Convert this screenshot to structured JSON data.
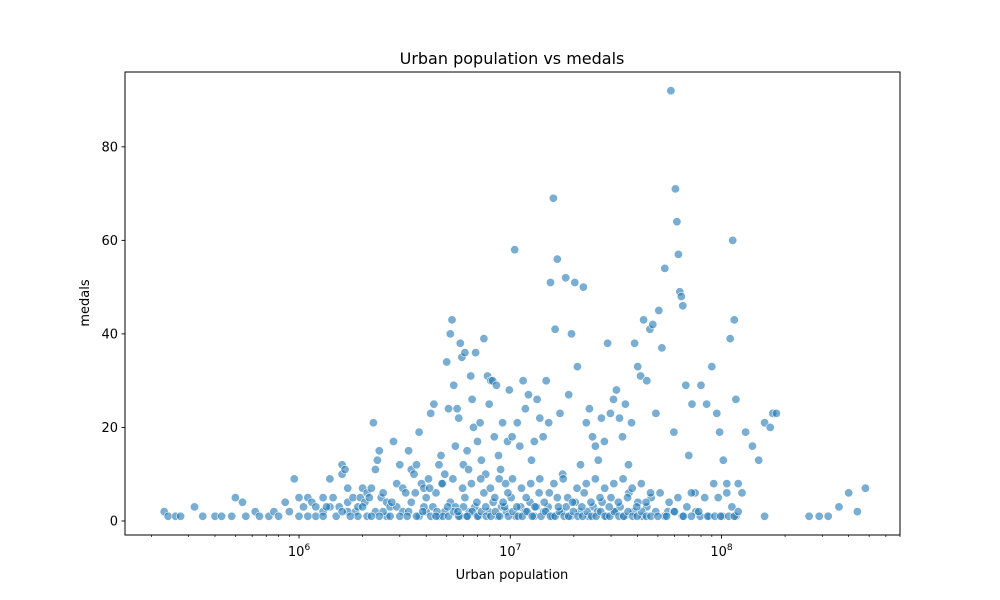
{
  "chart_data": {
    "type": "scatter",
    "title": "Urban population vs medals",
    "xlabel": "Urban population",
    "ylabel": "medals",
    "xscale": "log",
    "xlim": [
      150000,
      700000000
    ],
    "ylim": [
      -3,
      96
    ],
    "x_major_ticks": [
      {
        "value": 1000000,
        "base": "10",
        "exp": "6"
      },
      {
        "value": 10000000,
        "base": "10",
        "exp": "7"
      },
      {
        "value": 100000000,
        "base": "10",
        "exp": "8"
      }
    ],
    "y_ticks": [
      {
        "value": 0,
        "label": "0"
      },
      {
        "value": 20,
        "label": "20"
      },
      {
        "value": 40,
        "label": "40"
      },
      {
        "value": 60,
        "label": "60"
      },
      {
        "value": 80,
        "label": "80"
      }
    ],
    "grid": false,
    "point_color": "#1f77b4",
    "points": [
      [
        230000,
        2
      ],
      [
        240000,
        1
      ],
      [
        260000,
        1
      ],
      [
        275000,
        1
      ],
      [
        320000,
        3
      ],
      [
        350000,
        1
      ],
      [
        400000,
        1
      ],
      [
        430000,
        1
      ],
      [
        480000,
        1
      ],
      [
        500000,
        5
      ],
      [
        540000,
        4
      ],
      [
        560000,
        1
      ],
      [
        620000,
        2
      ],
      [
        650000,
        1
      ],
      [
        720000,
        1
      ],
      [
        760000,
        2
      ],
      [
        800000,
        1
      ],
      [
        860000,
        4
      ],
      [
        900000,
        2
      ],
      [
        950000,
        9
      ],
      [
        1000000,
        1
      ],
      [
        1000000,
        5
      ],
      [
        1050000,
        3
      ],
      [
        1100000,
        5
      ],
      [
        1150000,
        4
      ],
      [
        1200000,
        3
      ],
      [
        1300000,
        5
      ],
      [
        1300000,
        2
      ],
      [
        1400000,
        3
      ],
      [
        1400000,
        9
      ],
      [
        1450000,
        5
      ],
      [
        1550000,
        3
      ],
      [
        1600000,
        12
      ],
      [
        1600000,
        10
      ],
      [
        1650000,
        11
      ],
      [
        1700000,
        4
      ],
      [
        1700000,
        7
      ],
      [
        1800000,
        5
      ],
      [
        1850000,
        2
      ],
      [
        1900000,
        3
      ],
      [
        1950000,
        5
      ],
      [
        2000000,
        7
      ],
      [
        2050000,
        4
      ],
      [
        2100000,
        6
      ],
      [
        2200000,
        7
      ],
      [
        2250000,
        21
      ],
      [
        2300000,
        11
      ],
      [
        2350000,
        13
      ],
      [
        2400000,
        15
      ],
      [
        2450000,
        5
      ],
      [
        2500000,
        6
      ],
      [
        2600000,
        4
      ],
      [
        2700000,
        3
      ],
      [
        2800000,
        17
      ],
      [
        2900000,
        8
      ],
      [
        3000000,
        12
      ],
      [
        3100000,
        7
      ],
      [
        3200000,
        6
      ],
      [
        3300000,
        15
      ],
      [
        3400000,
        11
      ],
      [
        3500000,
        10
      ],
      [
        3600000,
        12
      ],
      [
        3700000,
        19
      ],
      [
        3800000,
        8
      ],
      [
        3900000,
        7
      ],
      [
        4000000,
        5
      ],
      [
        4100000,
        9
      ],
      [
        4200000,
        23
      ],
      [
        4350000,
        25
      ],
      [
        4450000,
        6
      ],
      [
        4600000,
        12
      ],
      [
        4700000,
        14
      ],
      [
        4800000,
        8
      ],
      [
        4900000,
        10
      ],
      [
        5000000,
        34
      ],
      [
        5100000,
        24
      ],
      [
        5200000,
        40
      ],
      [
        5300000,
        43
      ],
      [
        5400000,
        29
      ],
      [
        5500000,
        16
      ],
      [
        5600000,
        24
      ],
      [
        5700000,
        22
      ],
      [
        5800000,
        38
      ],
      [
        5900000,
        35
      ],
      [
        6000000,
        12
      ],
      [
        6100000,
        36
      ],
      [
        6250000,
        15
      ],
      [
        6350000,
        11
      ],
      [
        6500000,
        31
      ],
      [
        6600000,
        26
      ],
      [
        6700000,
        20
      ],
      [
        6850000,
        36
      ],
      [
        7000000,
        17
      ],
      [
        7200000,
        21
      ],
      [
        7300000,
        13
      ],
      [
        7500000,
        39
      ],
      [
        7650000,
        10
      ],
      [
        7800000,
        31
      ],
      [
        7950000,
        25
      ],
      [
        8100000,
        30
      ],
      [
        8250000,
        30
      ],
      [
        8400000,
        18
      ],
      [
        8600000,
        29
      ],
      [
        8800000,
        14
      ],
      [
        9000000,
        11
      ],
      [
        9200000,
        21
      ],
      [
        9500000,
        8
      ],
      [
        9700000,
        17
      ],
      [
        9900000,
        28
      ],
      [
        10200000,
        18
      ],
      [
        10500000,
        58
      ],
      [
        10800000,
        21
      ],
      [
        11100000,
        16
      ],
      [
        11500000,
        30
      ],
      [
        11800000,
        24
      ],
      [
        12200000,
        27
      ],
      [
        12600000,
        13
      ],
      [
        13000000,
        17
      ],
      [
        13400000,
        26
      ],
      [
        13800000,
        22
      ],
      [
        14300000,
        18
      ],
      [
        14800000,
        30
      ],
      [
        15200000,
        21
      ],
      [
        15500000,
        51
      ],
      [
        16000000,
        69
      ],
      [
        16300000,
        41
      ],
      [
        16700000,
        56
      ],
      [
        17200000,
        23
      ],
      [
        17700000,
        10
      ],
      [
        18300000,
        52
      ],
      [
        18900000,
        27
      ],
      [
        19500000,
        40
      ],
      [
        20200000,
        51
      ],
      [
        20800000,
        33
      ],
      [
        21500000,
        12
      ],
      [
        22200000,
        50
      ],
      [
        22900000,
        21
      ],
      [
        23700000,
        24
      ],
      [
        24500000,
        18
      ],
      [
        25300000,
        16
      ],
      [
        26100000,
        13
      ],
      [
        27000000,
        22
      ],
      [
        27900000,
        17
      ],
      [
        28900000,
        38
      ],
      [
        29800000,
        23
      ],
      [
        30800000,
        26
      ],
      [
        31800000,
        28
      ],
      [
        32900000,
        22
      ],
      [
        34000000,
        18
      ],
      [
        35100000,
        25
      ],
      [
        36300000,
        12
      ],
      [
        37500000,
        21
      ],
      [
        38800000,
        38
      ],
      [
        40100000,
        33
      ],
      [
        41400000,
        31
      ],
      [
        42800000,
        43
      ],
      [
        44300000,
        30
      ],
      [
        45800000,
        41
      ],
      [
        47300000,
        42
      ],
      [
        48900000,
        23
      ],
      [
        50500000,
        45
      ],
      [
        52200000,
        37
      ],
      [
        53900000,
        54
      ],
      [
        55700000,
        2
      ],
      [
        57600000,
        92
      ],
      [
        59500000,
        19
      ],
      [
        60500000,
        71
      ],
      [
        61500000,
        64
      ],
      [
        62500000,
        57
      ],
      [
        63500000,
        49
      ],
      [
        64500000,
        48
      ],
      [
        65600000,
        46
      ],
      [
        67800000,
        29
      ],
      [
        70000000,
        14
      ],
      [
        72500000,
        25
      ],
      [
        75000000,
        6
      ],
      [
        80000000,
        29
      ],
      [
        85000000,
        25
      ],
      [
        90000000,
        33
      ],
      [
        95000000,
        23
      ],
      [
        98000000,
        19
      ],
      [
        102000000,
        13
      ],
      [
        106000000,
        8
      ],
      [
        110000000,
        39
      ],
      [
        113000000,
        60
      ],
      [
        115000000,
        43
      ],
      [
        117000000,
        26
      ],
      [
        120000000,
        8
      ],
      [
        125000000,
        6
      ],
      [
        130000000,
        19
      ],
      [
        140000000,
        16
      ],
      [
        150000000,
        13
      ],
      [
        160000000,
        21
      ],
      [
        170000000,
        20
      ],
      [
        175000000,
        23
      ],
      [
        182000000,
        23
      ],
      [
        260000000,
        1
      ],
      [
        290000000,
        1
      ],
      [
        320000000,
        1
      ],
      [
        360000000,
        3
      ],
      [
        400000000,
        6
      ],
      [
        440000000,
        2
      ],
      [
        480000000,
        7
      ],
      [
        2100000,
        1
      ],
      [
        2300000,
        2
      ],
      [
        2600000,
        1
      ],
      [
        2900000,
        3
      ],
      [
        3100000,
        2
      ],
      [
        3400000,
        4
      ],
      [
        3700000,
        1
      ],
      [
        4000000,
        2
      ],
      [
        4300000,
        3
      ],
      [
        4600000,
        1
      ],
      [
        4900000,
        2
      ],
      [
        5200000,
        4
      ],
      [
        5500000,
        3
      ],
      [
        5800000,
        1
      ],
      [
        6100000,
        5
      ],
      [
        6400000,
        2
      ],
      [
        6800000,
        3
      ],
      [
        7100000,
        1
      ],
      [
        7500000,
        6
      ],
      [
        7900000,
        2
      ],
      [
        8300000,
        4
      ],
      [
        8700000,
        1
      ],
      [
        9100000,
        3
      ],
      [
        9600000,
        2
      ],
      [
        10100000,
        5
      ],
      [
        10600000,
        1
      ],
      [
        11200000,
        3
      ],
      [
        11800000,
        2
      ],
      [
        12400000,
        4
      ],
      [
        13000000,
        1
      ],
      [
        13700000,
        6
      ],
      [
        14400000,
        2
      ],
      [
        15100000,
        3
      ],
      [
        15900000,
        1
      ],
      [
        16700000,
        5
      ],
      [
        17500000,
        2
      ],
      [
        18400000,
        3
      ],
      [
        19300000,
        1
      ],
      [
        20300000,
        4
      ],
      [
        21300000,
        2
      ],
      [
        22400000,
        6
      ],
      [
        23500000,
        1
      ],
      [
        24700000,
        3
      ],
      [
        25900000,
        2
      ],
      [
        27200000,
        4
      ],
      [
        28600000,
        1
      ],
      [
        30000000,
        5
      ],
      [
        31500000,
        2
      ],
      [
        33100000,
        3
      ],
      [
        34800000,
        1
      ],
      [
        36500000,
        6
      ],
      [
        38300000,
        2
      ],
      [
        40200000,
        4
      ],
      [
        42200000,
        1
      ],
      [
        44300000,
        3
      ],
      [
        46500000,
        5
      ],
      [
        48800000,
        2
      ],
      [
        51200000,
        6
      ],
      [
        53800000,
        1
      ],
      [
        56500000,
        4
      ],
      [
        59300000,
        2
      ],
      [
        62200000,
        5
      ],
      [
        65300000,
        1
      ],
      [
        68600000,
        3
      ],
      [
        72000000,
        6
      ],
      [
        75600000,
        2
      ],
      [
        79400000,
        1
      ],
      [
        83300000,
        5
      ],
      [
        87500000,
        1
      ],
      [
        91900000,
        8
      ],
      [
        96500000,
        5
      ],
      [
        101000000,
        1
      ],
      [
        106000000,
        6
      ],
      [
        112000000,
        3
      ],
      [
        117000000,
        1
      ],
      [
        1200000,
        1
      ],
      [
        1500000,
        1
      ],
      [
        1700000,
        2
      ],
      [
        1900000,
        1
      ],
      [
        2000000,
        3
      ],
      [
        2200000,
        1
      ],
      [
        2500000,
        2
      ],
      [
        2700000,
        1
      ],
      [
        3000000,
        1
      ],
      [
        3300000,
        2
      ],
      [
        3600000,
        1
      ],
      [
        3900000,
        3
      ],
      [
        4200000,
        1
      ],
      [
        4500000,
        2
      ],
      [
        4800000,
        1
      ],
      [
        5100000,
        1
      ],
      [
        5400000,
        2
      ],
      [
        5700000,
        1
      ],
      [
        6000000,
        3
      ],
      [
        6300000,
        1
      ],
      [
        6600000,
        2
      ],
      [
        7000000,
        1
      ],
      [
        7300000,
        2
      ],
      [
        7700000,
        1
      ],
      [
        8100000,
        1
      ],
      [
        8500000,
        2
      ],
      [
        8900000,
        1
      ],
      [
        9400000,
        3
      ],
      [
        9800000,
        1
      ],
      [
        10300000,
        2
      ],
      [
        10900000,
        1
      ],
      [
        11400000,
        1
      ],
      [
        12000000,
        2
      ],
      [
        12700000,
        1
      ],
      [
        13300000,
        3
      ],
      [
        14000000,
        1
      ],
      [
        14700000,
        2
      ],
      [
        15500000,
        1
      ],
      [
        16300000,
        1
      ],
      [
        17100000,
        2
      ],
      [
        18000000,
        1
      ],
      [
        18900000,
        1
      ],
      [
        19900000,
        2
      ],
      [
        20900000,
        1
      ],
      [
        22000000,
        1
      ],
      [
        23100000,
        2
      ],
      [
        24300000,
        1
      ],
      [
        25500000,
        1
      ],
      [
        26800000,
        2
      ],
      [
        28100000,
        1
      ],
      [
        29600000,
        1
      ],
      [
        31100000,
        2
      ],
      [
        32700000,
        1
      ],
      [
        34400000,
        1
      ],
      [
        36100000,
        2
      ],
      [
        38000000,
        1
      ],
      [
        39900000,
        1
      ],
      [
        41900000,
        2
      ],
      [
        44100000,
        1
      ],
      [
        46300000,
        1
      ],
      [
        50000000,
        1
      ],
      [
        55000000,
        1
      ],
      [
        60000000,
        2
      ],
      [
        66000000,
        1
      ],
      [
        72000000,
        1
      ],
      [
        78000000,
        2
      ],
      [
        86000000,
        1
      ],
      [
        93000000,
        1
      ],
      [
        99000000,
        1
      ],
      [
        108000000,
        1
      ],
      [
        115000000,
        1
      ],
      [
        120000000,
        2
      ],
      [
        160000000,
        1
      ],
      [
        1100000,
        1
      ],
      [
        1300000,
        1
      ],
      [
        1350000,
        3
      ],
      [
        1600000,
        2
      ],
      [
        1750000,
        1
      ],
      [
        2150000,
        5
      ],
      [
        2400000,
        1
      ],
      [
        2750000,
        4
      ],
      [
        3250000,
        1
      ],
      [
        3550000,
        6
      ],
      [
        3850000,
        2
      ],
      [
        4150000,
        7
      ],
      [
        4450000,
        1
      ],
      [
        4750000,
        8
      ],
      [
        5050000,
        3
      ],
      [
        5350000,
        9
      ],
      [
        5650000,
        2
      ],
      [
        5950000,
        7
      ],
      [
        6250000,
        1
      ],
      [
        6550000,
        8
      ],
      [
        6950000,
        4
      ],
      [
        7250000,
        9
      ],
      [
        7650000,
        3
      ],
      [
        8050000,
        7
      ],
      [
        8450000,
        5
      ],
      [
        8850000,
        9
      ],
      [
        9250000,
        4
      ],
      [
        9750000,
        6
      ],
      [
        10250000,
        9
      ],
      [
        10750000,
        3
      ],
      [
        11300000,
        7
      ],
      [
        11900000,
        5
      ],
      [
        12500000,
        8
      ],
      [
        13100000,
        3
      ],
      [
        13800000,
        9
      ],
      [
        14500000,
        4
      ],
      [
        15300000,
        6
      ],
      [
        16100000,
        8
      ],
      [
        16900000,
        3
      ],
      [
        17800000,
        9
      ],
      [
        18700000,
        5
      ],
      [
        19700000,
        4
      ],
      [
        20700000,
        7
      ],
      [
        21800000,
        3
      ],
      [
        22900000,
        8
      ],
      [
        24100000,
        4
      ],
      [
        25300000,
        9
      ],
      [
        26600000,
        5
      ],
      [
        28000000,
        7
      ],
      [
        29400000,
        3
      ],
      [
        30900000,
        8
      ],
      [
        32500000,
        4
      ],
      [
        34200000,
        9
      ],
      [
        35900000,
        5
      ],
      [
        37800000,
        7
      ],
      [
        39700000,
        3
      ],
      [
        41700000,
        8
      ],
      [
        43900000,
        4
      ],
      [
        46100000,
        6
      ]
    ]
  }
}
